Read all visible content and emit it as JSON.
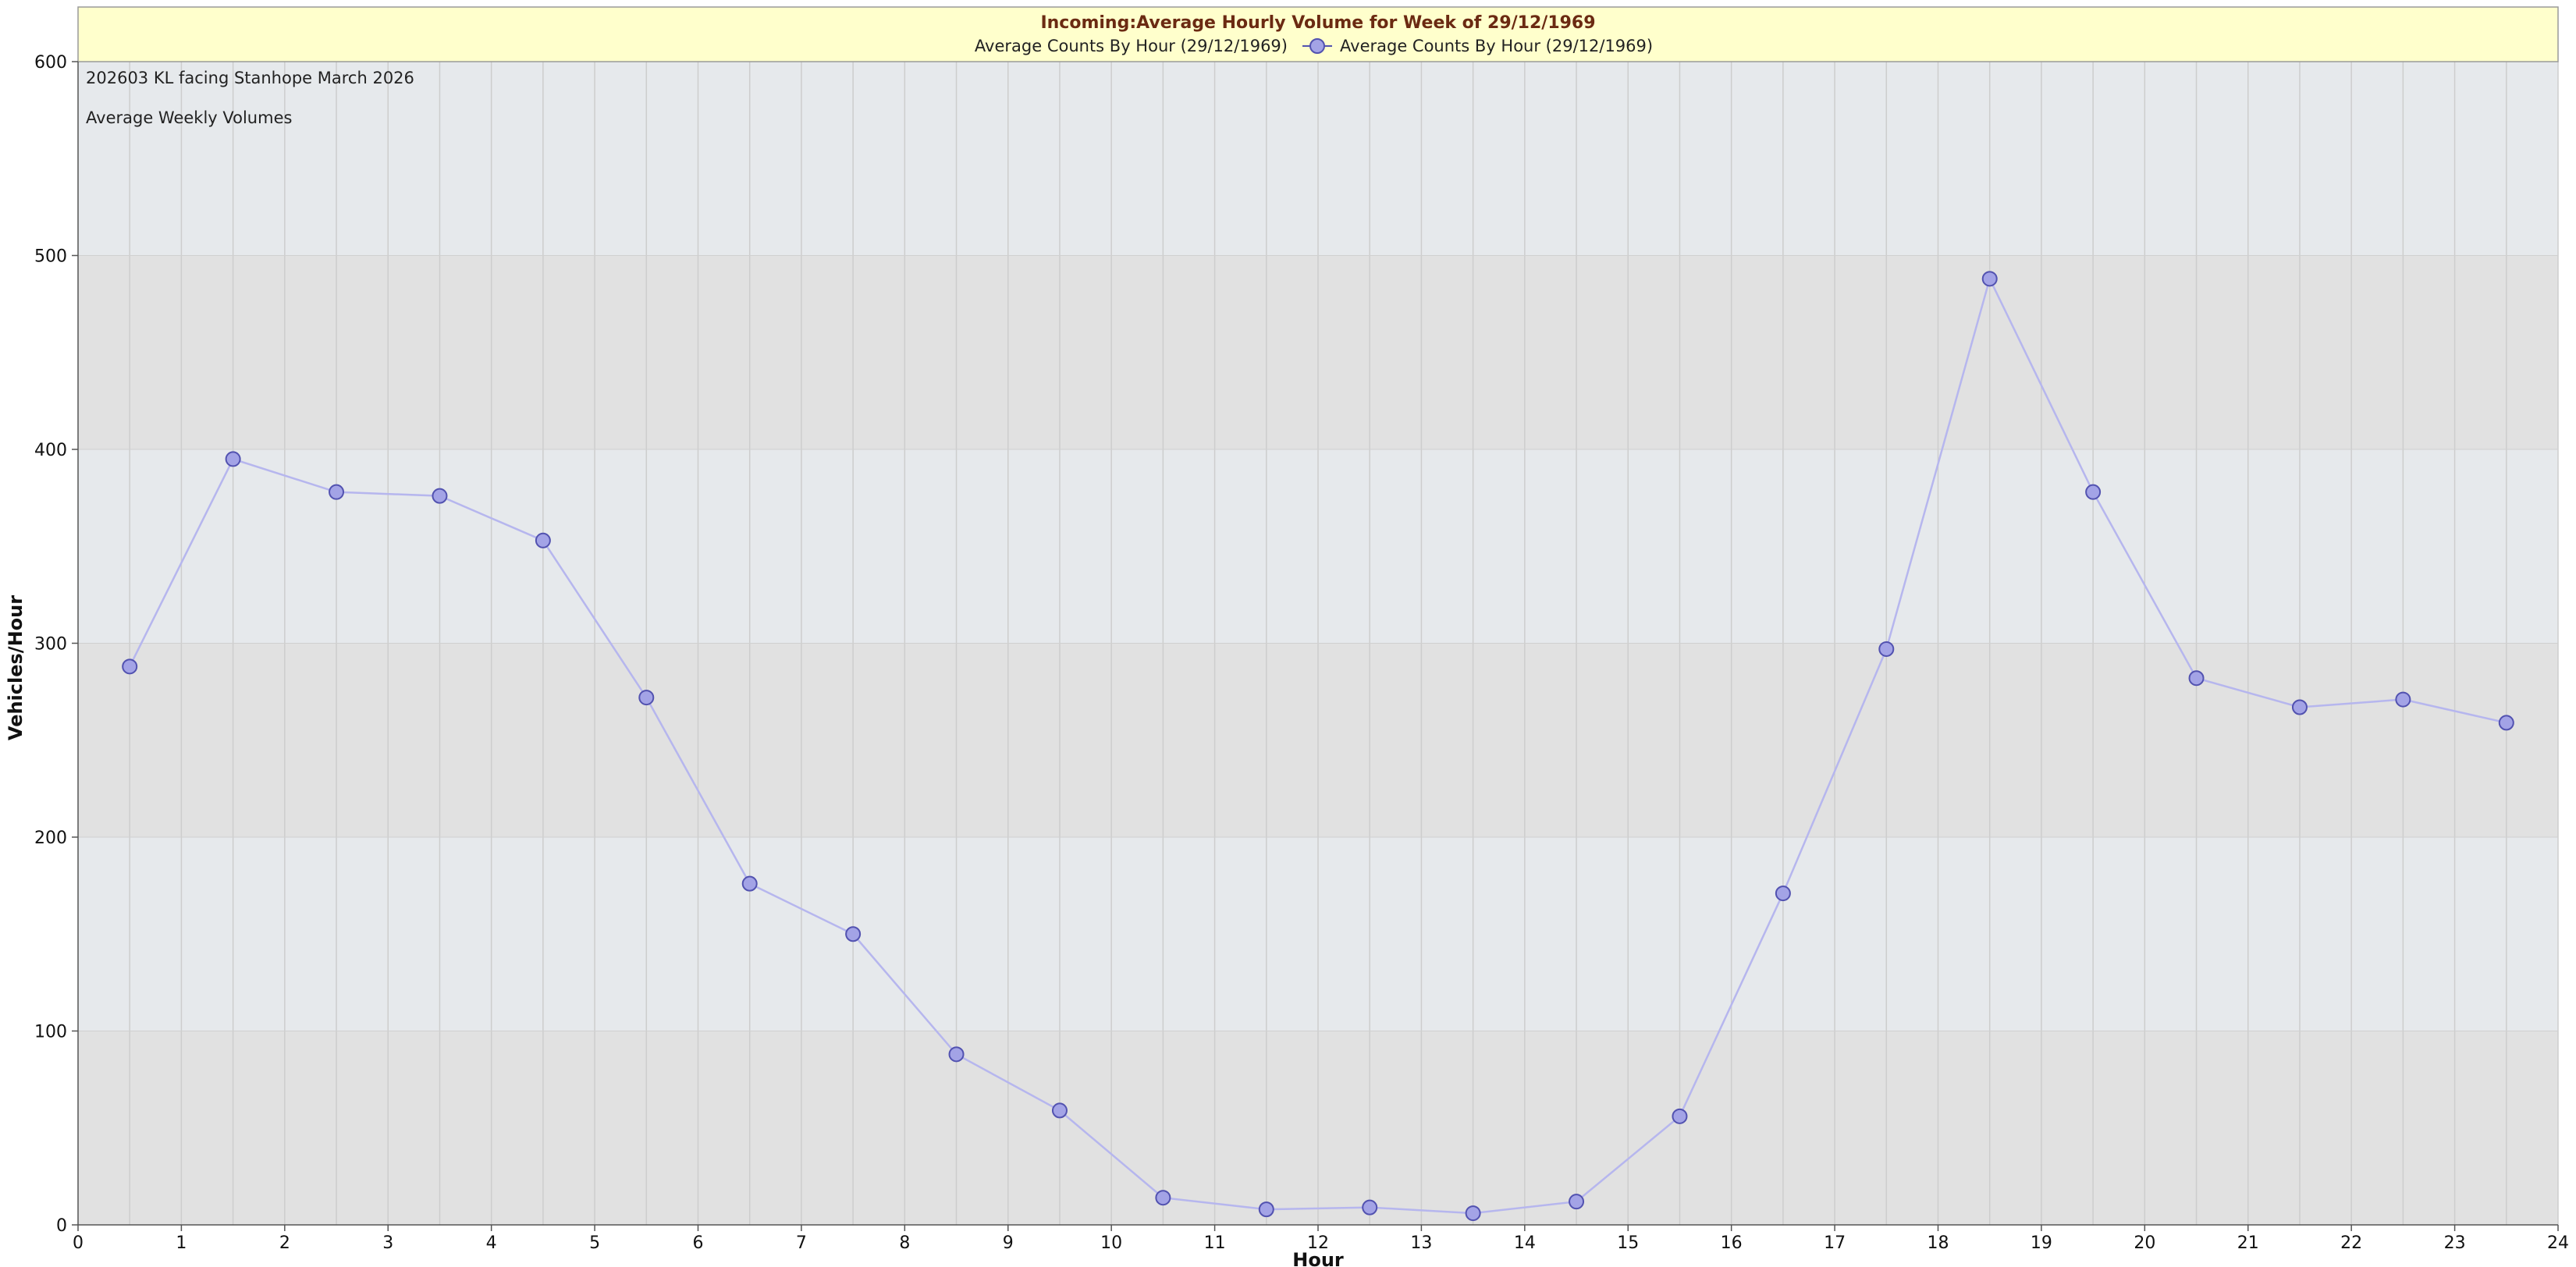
{
  "chart_data": {
    "type": "line",
    "title": "Incoming:Average Hourly Volume for Week of 29/12/1969",
    "legend": [
      "Average Counts By Hour (29/12/1969)",
      "Average Counts By Hour (29/12/1969)"
    ],
    "annotations": [
      "202603 KL facing Stanhope March 2026",
      "Average Weekly Volumes"
    ],
    "xlabel": "Hour",
    "ylabel": "Vehicles/Hour",
    "xlim": [
      0,
      24
    ],
    "ylim": [
      0,
      600
    ],
    "x_ticks": [
      0,
      1,
      2,
      3,
      4,
      5,
      6,
      7,
      8,
      9,
      10,
      11,
      12,
      13,
      14,
      15,
      16,
      17,
      18,
      19,
      20,
      21,
      22,
      23,
      24
    ],
    "y_ticks": [
      0,
      100,
      200,
      300,
      400,
      500,
      600
    ],
    "grid": true,
    "legend_position": "top",
    "colors": {
      "line": "#b6b6ee",
      "marker_fill": "#a3a3e6",
      "marker_stroke": "#5252b0",
      "band_light": "#e6e9ec",
      "band_dark": "#e1e1e1",
      "title_bg": "#ffffcc",
      "title_text": "#6b2a12"
    },
    "series": [
      {
        "x": [
          0.5,
          1.5,
          2.5,
          3.5,
          4.5,
          5.5,
          6.5,
          7.5,
          8.5,
          9.5,
          10.5,
          11.5,
          12.5,
          13.5,
          14.5,
          15.5,
          16.5,
          17.5,
          18.5,
          19.5,
          20.5,
          21.5,
          22.5,
          23.5
        ],
        "y": [
          288,
          395,
          378,
          376,
          353,
          272,
          176,
          150,
          88,
          59,
          14,
          8,
          9,
          6,
          12,
          56,
          171,
          297,
          488,
          378,
          282,
          267,
          271,
          259
        ]
      }
    ]
  }
}
